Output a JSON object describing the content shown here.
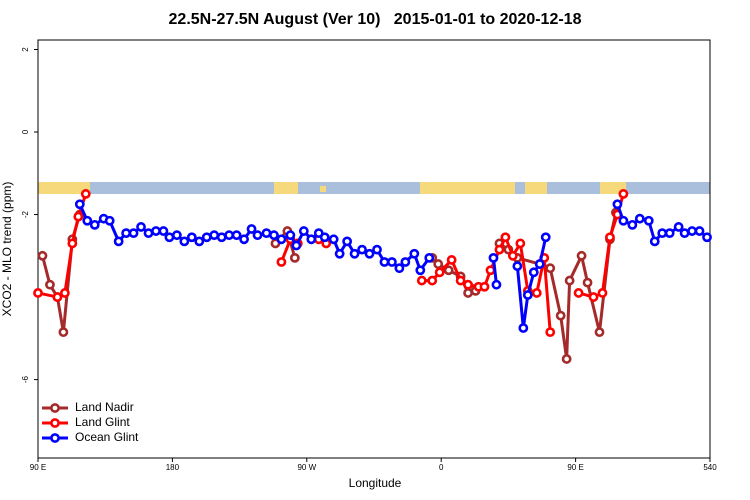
{
  "chart_data": {
    "type": "line",
    "title": "22.5N-27.5N August (Ver 10)   2015-01-01 to 2020-12-18",
    "x_label": "Longitude",
    "y_label": "XCO2 - MLO trend (ppm)",
    "xlim": [
      90,
      540
    ],
    "ylim": [
      -7.9,
      2.23
    ],
    "xticks": [
      {
        "value": 90,
        "label": "90 E"
      },
      180,
      {
        "value": 270,
        "label": "90 W"
      },
      {
        "value": 360,
        "label": "0"
      },
      {
        "value": 450,
        "label": "90 E"
      },
      540
    ],
    "yticks": [
      2,
      0,
      -2,
      -6
    ],
    "legend": "bottom-left",
    "series": [
      {
        "name": "Land Nadir",
        "color": "#a52a2a",
        "x": [
          93,
          98,
          103,
          107,
          113,
          118,
          null,
          249,
          257,
          262,
          null,
          354,
          358,
          365,
          373,
          378,
          383,
          null,
          399,
          405,
          411,
          426,
          433,
          440,
          444,
          446,
          454,
          458,
          466,
          473,
          477
        ],
        "values": [
          -3.0,
          -3.7,
          -4.0,
          -4.85,
          -2.6,
          -2.0,
          null,
          -2.7,
          -2.4,
          -3.05,
          null,
          -3.05,
          -3.2,
          -3.35,
          -3.5,
          -3.9,
          -3.85,
          null,
          -2.7,
          -2.85,
          -3.05,
          -3.2,
          -3.3,
          -4.45,
          -5.5,
          -3.6,
          -3.0,
          -3.65,
          -4.85,
          -2.6,
          -1.95
        ]
      },
      {
        "name": "Land Glint",
        "color": "#ff0000",
        "x": [
          90,
          103,
          108,
          113,
          117,
          122,
          null,
          253,
          259,
          264,
          null,
          278,
          283,
          null,
          347,
          354,
          359,
          367,
          373,
          378,
          385,
          389,
          393,
          399,
          403,
          408,
          413,
          418,
          424,
          429,
          433,
          null,
          452,
          462,
          468,
          473,
          478,
          482
        ],
        "values": [
          -3.9,
          -4.0,
          -3.9,
          -2.7,
          -2.05,
          -1.5,
          null,
          -3.15,
          -2.6,
          -2.7,
          null,
          -2.6,
          -2.7,
          null,
          -3.6,
          -3.6,
          -3.4,
          -3.1,
          -3.6,
          -3.7,
          -3.75,
          -3.75,
          -3.35,
          -2.85,
          -2.55,
          -3.0,
          -2.7,
          -3.85,
          -3.9,
          -3.05,
          -4.85,
          null,
          -3.9,
          -4.0,
          -3.9,
          -2.55,
          -2.0,
          -1.5
        ]
      },
      {
        "name": "Ocean Glint",
        "color": "#0000ff",
        "x": [
          118,
          123,
          128,
          134,
          138,
          144,
          149,
          154,
          159,
          164,
          169,
          174,
          178,
          183,
          188,
          193,
          198,
          203,
          208,
          213,
          218,
          223,
          228,
          233,
          237,
          243,
          248,
          253,
          259,
          263,
          268,
          273,
          278,
          282,
          288,
          292,
          297,
          302,
          307,
          312,
          317,
          322,
          327,
          332,
          336,
          342,
          346,
          352,
          null,
          395,
          397,
          null,
          411,
          415,
          418,
          422,
          426,
          430,
          null,
          478,
          482,
          488,
          493,
          499,
          503,
          508,
          513,
          519,
          523,
          528,
          533,
          538
        ],
        "values": [
          -1.75,
          -2.15,
          -2.25,
          -2.1,
          -2.15,
          -2.65,
          -2.45,
          -2.45,
          -2.3,
          -2.45,
          -2.4,
          -2.4,
          -2.55,
          -2.5,
          -2.65,
          -2.55,
          -2.65,
          -2.55,
          -2.5,
          -2.55,
          -2.5,
          -2.5,
          -2.6,
          -2.35,
          -2.5,
          -2.45,
          -2.5,
          -2.6,
          -2.5,
          -2.75,
          -2.4,
          -2.6,
          -2.45,
          -2.55,
          -2.6,
          -2.95,
          -2.65,
          -2.95,
          -2.85,
          -2.95,
          -2.85,
          -3.15,
          -3.15,
          -3.3,
          -3.15,
          -2.95,
          -3.35,
          -3.05,
          null,
          -3.05,
          -3.7,
          null,
          -3.25,
          -4.75,
          -3.95,
          -3.4,
          -3.2,
          -2.55,
          null,
          -1.75,
          -2.15,
          -2.25,
          -2.1,
          -2.15,
          -2.65,
          -2.45,
          -2.45,
          -2.3,
          -2.45,
          -2.4,
          -2.4,
          -2.55
        ]
      }
    ]
  }
}
